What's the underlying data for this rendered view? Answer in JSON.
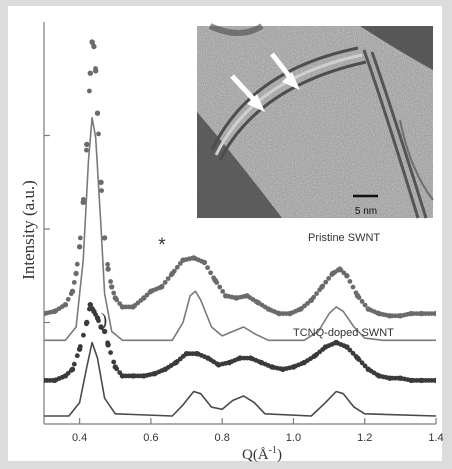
{
  "chart_data": {
    "type": "scatter",
    "xlabel": "Q(Å",
    "xlabel_sup": "-1",
    "xlabel_close": ")",
    "ylabel": "Intensity (a.u.)",
    "xlim": [
      0.3,
      1.4
    ],
    "xticks": [
      "0.4",
      "0.6",
      "0.8",
      "1.0",
      "1.2",
      "1.4"
    ],
    "xtick_values": [
      0.4,
      0.6,
      0.8,
      1.0,
      1.2,
      1.4
    ],
    "legend_position": "none",
    "annotations": {
      "pristine": "Pristine SWNT",
      "doped": "TCNQ-doped SWNT",
      "asterisk": "*",
      "bracket": ")",
      "scale_bar": "5 nm"
    },
    "colors": {
      "pristine_points": "#6b6b6b",
      "pristine_fit": "#7a7a7a",
      "doped_points": "#3a3a3a",
      "doped_fit": "#4a4a4a",
      "axis": "#7c7c7c"
    },
    "series": [
      {
        "label_key": "pristine",
        "kind": "data",
        "points": [
          [
            0.3,
            0.46
          ],
          [
            0.33,
            0.47
          ],
          [
            0.36,
            0.5
          ],
          [
            0.38,
            0.56
          ],
          [
            0.39,
            0.64
          ],
          [
            0.4,
            0.76
          ],
          [
            0.41,
            0.96
          ],
          [
            0.42,
            1.22
          ],
          [
            0.43,
            1.54
          ],
          [
            0.435,
            1.68
          ],
          [
            0.44,
            1.66
          ],
          [
            0.445,
            1.55
          ],
          [
            0.45,
            1.36
          ],
          [
            0.46,
            1.05
          ],
          [
            0.47,
            0.8
          ],
          [
            0.48,
            0.66
          ],
          [
            0.49,
            0.58
          ],
          [
            0.5,
            0.53
          ],
          [
            0.52,
            0.49
          ],
          [
            0.55,
            0.49
          ],
          [
            0.58,
            0.53
          ],
          [
            0.6,
            0.56
          ],
          [
            0.63,
            0.58
          ],
          [
            0.66,
            0.64
          ],
          [
            0.69,
            0.7
          ],
          [
            0.72,
            0.71
          ],
          [
            0.75,
            0.69
          ],
          [
            0.78,
            0.61
          ],
          [
            0.81,
            0.54
          ],
          [
            0.84,
            0.53
          ],
          [
            0.87,
            0.54
          ],
          [
            0.9,
            0.51
          ],
          [
            0.93,
            0.48
          ],
          [
            0.96,
            0.46
          ],
          [
            0.99,
            0.46
          ],
          [
            1.02,
            0.48
          ],
          [
            1.05,
            0.52
          ],
          [
            1.08,
            0.58
          ],
          [
            1.11,
            0.64
          ],
          [
            1.13,
            0.66
          ],
          [
            1.15,
            0.63
          ],
          [
            1.18,
            0.54
          ],
          [
            1.21,
            0.48
          ],
          [
            1.24,
            0.46
          ],
          [
            1.27,
            0.45
          ],
          [
            1.3,
            0.45
          ],
          [
            1.33,
            0.46
          ],
          [
            1.36,
            0.46
          ],
          [
            1.4,
            0.46
          ]
        ]
      },
      {
        "label_key": "pristine",
        "kind": "fit",
        "points": [
          [
            0.3,
            0.34
          ],
          [
            0.36,
            0.34
          ],
          [
            0.39,
            0.4
          ],
          [
            0.41,
            0.7
          ],
          [
            0.425,
            1.15
          ],
          [
            0.435,
            1.34
          ],
          [
            0.445,
            1.25
          ],
          [
            0.46,
            0.85
          ],
          [
            0.47,
            0.55
          ],
          [
            0.49,
            0.38
          ],
          [
            0.52,
            0.34
          ],
          [
            0.66,
            0.34
          ],
          [
            0.69,
            0.42
          ],
          [
            0.71,
            0.54
          ],
          [
            0.725,
            0.56
          ],
          [
            0.74,
            0.52
          ],
          [
            0.77,
            0.4
          ],
          [
            0.8,
            0.36
          ],
          [
            0.83,
            0.38
          ],
          [
            0.86,
            0.4
          ],
          [
            0.89,
            0.37
          ],
          [
            0.93,
            0.34
          ],
          [
            1.03,
            0.34
          ],
          [
            1.07,
            0.38
          ],
          [
            1.1,
            0.46
          ],
          [
            1.12,
            0.49
          ],
          [
            1.14,
            0.47
          ],
          [
            1.17,
            0.4
          ],
          [
            1.2,
            0.35
          ],
          [
            1.25,
            0.34
          ],
          [
            1.4,
            0.34
          ]
        ]
      },
      {
        "label_key": "doped",
        "kind": "data",
        "points": [
          [
            0.3,
            0.16
          ],
          [
            0.33,
            0.16
          ],
          [
            0.36,
            0.18
          ],
          [
            0.38,
            0.21
          ],
          [
            0.4,
            0.3
          ],
          [
            0.42,
            0.42
          ],
          [
            0.43,
            0.5
          ],
          [
            0.44,
            0.47
          ],
          [
            0.45,
            0.44
          ],
          [
            0.46,
            0.4
          ],
          [
            0.47,
            0.38
          ],
          [
            0.48,
            0.32
          ],
          [
            0.5,
            0.22
          ],
          [
            0.52,
            0.18
          ],
          [
            0.55,
            0.18
          ],
          [
            0.58,
            0.18
          ],
          [
            0.61,
            0.19
          ],
          [
            0.64,
            0.21
          ],
          [
            0.67,
            0.24
          ],
          [
            0.7,
            0.28
          ],
          [
            0.73,
            0.28
          ],
          [
            0.76,
            0.26
          ],
          [
            0.79,
            0.23
          ],
          [
            0.82,
            0.24
          ],
          [
            0.85,
            0.26
          ],
          [
            0.88,
            0.26
          ],
          [
            0.91,
            0.24
          ],
          [
            0.94,
            0.22
          ],
          [
            0.97,
            0.21
          ],
          [
            1.0,
            0.22
          ],
          [
            1.03,
            0.24
          ],
          [
            1.06,
            0.27
          ],
          [
            1.09,
            0.31
          ],
          [
            1.12,
            0.33
          ],
          [
            1.15,
            0.31
          ],
          [
            1.18,
            0.26
          ],
          [
            1.21,
            0.21
          ],
          [
            1.24,
            0.18
          ],
          [
            1.27,
            0.17
          ],
          [
            1.3,
            0.17
          ],
          [
            1.33,
            0.16
          ],
          [
            1.36,
            0.16
          ],
          [
            1.4,
            0.16
          ]
        ]
      },
      {
        "label_key": "doped",
        "kind": "fit",
        "points": [
          [
            0.3,
            0.0
          ],
          [
            0.37,
            0.0
          ],
          [
            0.4,
            0.06
          ],
          [
            0.42,
            0.22
          ],
          [
            0.435,
            0.33
          ],
          [
            0.45,
            0.26
          ],
          [
            0.47,
            0.08
          ],
          [
            0.5,
            0.01
          ],
          [
            0.66,
            0.0
          ],
          [
            0.69,
            0.05
          ],
          [
            0.72,
            0.11
          ],
          [
            0.74,
            0.1
          ],
          [
            0.77,
            0.04
          ],
          [
            0.8,
            0.03
          ],
          [
            0.83,
            0.07
          ],
          [
            0.86,
            0.09
          ],
          [
            0.89,
            0.06
          ],
          [
            0.92,
            0.01
          ],
          [
            1.05,
            0.0
          ],
          [
            1.09,
            0.06
          ],
          [
            1.12,
            0.11
          ],
          [
            1.14,
            0.1
          ],
          [
            1.17,
            0.04
          ],
          [
            1.2,
            0.01
          ],
          [
            1.4,
            0.0
          ]
        ]
      }
    ]
  }
}
